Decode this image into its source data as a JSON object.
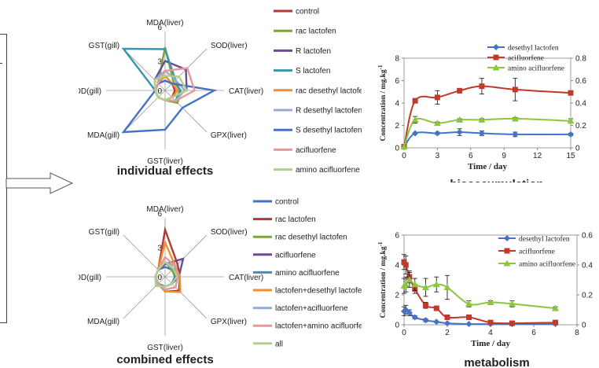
{
  "captions": {
    "individual": "individual effects",
    "combined": "combined effects",
    "bioaccumulation": "bioaccumulation",
    "metabolism": "metabolism"
  },
  "radar_axes": [
    "MDA(liver)",
    "SOD(liver)",
    "CAT(liver)",
    "GPX(liver)",
    "GST(liver)",
    "MDA(gill)",
    "SOD(gill)",
    "GST(gill)"
  ],
  "chart_data": [
    {
      "type": "radar",
      "id": "individual",
      "title": "individual effects",
      "axes": [
        "MDA(liver)",
        "SOD(liver)",
        "CAT(liver)",
        "GPX(liver)",
        "GST(liver)",
        "MDA(gill)",
        "SOD(gill)",
        "GST(gill)"
      ],
      "rlim": [
        0,
        6
      ],
      "ticks": [
        0,
        3,
        6
      ],
      "series": [
        {
          "name": "control",
          "color": "#b13a36",
          "values": [
            1,
            1,
            1,
            1,
            1,
            1,
            1,
            1
          ]
        },
        {
          "name": "rac lactofen",
          "color": "#7ea43a",
          "values": [
            4.4,
            1.2,
            1.6,
            1.8,
            1.0,
            1.0,
            1.0,
            1.0
          ]
        },
        {
          "name": "R lactofen",
          "color": "#6e4a96",
          "values": [
            3.0,
            3.0,
            2.2,
            1.0,
            1.0,
            1.0,
            1.0,
            1.5
          ]
        },
        {
          "name": "S lactofen",
          "color": "#3a95ad",
          "values": [
            4.2,
            1.5,
            1.5,
            1.5,
            1.0,
            1.0,
            1.0,
            6.0
          ]
        },
        {
          "name": "rac desethyl lactofen",
          "color": "#ef8f2f",
          "values": [
            1.5,
            1.0,
            1.3,
            1.0,
            1.0,
            1.0,
            1.0,
            1.0
          ]
        },
        {
          "name": "R desethyl lactofen",
          "color": "#93acd6",
          "values": [
            2.0,
            1.5,
            2.0,
            1.5,
            1.0,
            1.0,
            1.0,
            1.5
          ]
        },
        {
          "name": "S desethyl lactofen",
          "color": "#4472c4",
          "values": [
            1.0,
            1.0,
            5.0,
            2.5,
            4.0,
            6.0,
            1.0,
            1.0
          ]
        },
        {
          "name": "acifluorfene",
          "color": "#e5999b",
          "values": [
            2.0,
            3.2,
            3.0,
            1.5,
            1.0,
            1.0,
            1.0,
            1.0
          ]
        },
        {
          "name": "amino acifluorfene",
          "color": "#b1cf8e",
          "values": [
            1.5,
            2.0,
            2.2,
            1.0,
            1.0,
            1.0,
            1.0,
            1.5
          ]
        }
      ]
    },
    {
      "type": "radar",
      "id": "combined",
      "title": "combined effects",
      "axes": [
        "MDA(liver)",
        "SOD(liver)",
        "CAT(liver)",
        "GPX(liver)",
        "GST(liver)",
        "MDA(gill)",
        "SOD(gill)",
        "GST(gill)"
      ],
      "rlim": [
        0,
        6
      ],
      "ticks": [
        0,
        3,
        6
      ],
      "series": [
        {
          "name": "control",
          "color": "#4472c4",
          "values": [
            1,
            1,
            1,
            1,
            1,
            1,
            1,
            1
          ]
        },
        {
          "name": "rac lactofen",
          "color": "#b13a36",
          "values": [
            4.8,
            1.8,
            1.5,
            2.0,
            1.5,
            1.0,
            1.0,
            1.0
          ]
        },
        {
          "name": "rac desethyl lactofen",
          "color": "#7ea43a",
          "values": [
            1.5,
            1.0,
            1.0,
            1.0,
            1.0,
            1.3,
            1.0,
            1.0
          ]
        },
        {
          "name": "acifluorfene",
          "color": "#6e4a96",
          "values": [
            1.3,
            2.6,
            1.4,
            1.0,
            1.0,
            1.0,
            1.0,
            1.0
          ]
        },
        {
          "name": "amino acifluorfene",
          "color": "#3a95ad",
          "values": [
            1.5,
            1.5,
            1.0,
            1.0,
            1.0,
            1.0,
            1.0,
            1.0
          ]
        },
        {
          "name": "lactofen+desethyl lactofen",
          "color": "#ef8f2f",
          "values": [
            3.5,
            1.5,
            1.5,
            2.2,
            1.5,
            1.0,
            1.0,
            1.0
          ]
        },
        {
          "name": "lactofen+acifluorfene",
          "color": "#93acd6",
          "values": [
            1.5,
            1.5,
            1.3,
            1.5,
            1.3,
            1.0,
            1.0,
            1.0
          ]
        },
        {
          "name": "lactofen+amino acifluorfene",
          "color": "#e5999b",
          "values": [
            2.0,
            1.5,
            1.3,
            1.5,
            1.3,
            1.0,
            1.0,
            1.0
          ]
        },
        {
          "name": "all",
          "color": "#b1cf8e",
          "values": [
            1.5,
            1.2,
            1.2,
            1.0,
            1.0,
            1.3,
            1.0,
            1.0
          ]
        }
      ]
    },
    {
      "type": "line",
      "id": "bioaccumulation",
      "title": "bioaccumulation",
      "xlabel": "Time / day",
      "ylabel": "Concentration / mg.kg",
      "ylabel_sup": "-1",
      "xlim": [
        0,
        15
      ],
      "xticks": [
        0,
        3,
        6,
        9,
        12,
        15
      ],
      "ylim_left": [
        0,
        8
      ],
      "yticks_left": [
        0,
        2,
        4,
        6,
        8
      ],
      "ylim_right": [
        0,
        0.8
      ],
      "yticks_right": [
        "0",
        "0.2",
        "0.4",
        "0.6",
        "0.8"
      ],
      "series": [
        {
          "name": "desethyl lactofen",
          "color": "#4472c4",
          "marker": "diamond",
          "axis": "right",
          "x": [
            0,
            1,
            3,
            5,
            7,
            10,
            15
          ],
          "y": [
            0.01,
            0.13,
            0.13,
            0.14,
            0.13,
            0.12,
            0.12
          ],
          "err": [
            0,
            0,
            0.01,
            0.03,
            0.02,
            0.02,
            0.01
          ]
        },
        {
          "name": "acifluorfene",
          "color": "#c0392b",
          "marker": "square",
          "axis": "left",
          "x": [
            0,
            1,
            3,
            5,
            7,
            10,
            15
          ],
          "y": [
            0.1,
            4.2,
            4.5,
            5.1,
            5.5,
            5.2,
            4.9
          ],
          "err": [
            0,
            0.2,
            0.6,
            0.2,
            0.7,
            1.0,
            0.1
          ]
        },
        {
          "name": "amino acifluorfene",
          "color": "#8cc63f",
          "marker": "triangle",
          "axis": "right",
          "x": [
            0,
            1,
            3,
            5,
            7,
            10,
            15
          ],
          "y": [
            0.01,
            0.25,
            0.22,
            0.25,
            0.25,
            0.26,
            0.24
          ],
          "err": [
            0,
            0.03,
            0.01,
            0.01,
            0.01,
            0.01,
            0.02
          ]
        }
      ]
    },
    {
      "type": "line",
      "id": "metabolism",
      "title": "metabolism",
      "xlabel": "Time / day",
      "ylabel": "Concentration / mg.kg",
      "ylabel_sup": "-1",
      "xlim": [
        0,
        8
      ],
      "xticks": [
        0,
        2,
        4,
        6,
        8
      ],
      "ylim_left": [
        0,
        6
      ],
      "yticks_left": [
        0,
        2,
        4,
        6
      ],
      "ylim_right": [
        0,
        0.6
      ],
      "yticks_right": [
        "0",
        "0.2",
        "0.4",
        "0.6"
      ],
      "series": [
        {
          "name": "desethyl lactofen",
          "color": "#4472c4",
          "marker": "diamond",
          "axis": "left",
          "x": [
            0,
            0.083,
            0.25,
            0.5,
            1,
            1.5,
            2,
            3,
            4,
            5,
            7
          ],
          "y": [
            0.9,
            1.0,
            0.8,
            0.5,
            0.3,
            0.2,
            0.1,
            0.05,
            0.05,
            0.05,
            0.05
          ],
          "err": [
            0.3,
            0.3,
            0.2,
            0.1,
            0.1,
            0.05,
            0,
            0,
            0,
            0,
            0
          ]
        },
        {
          "name": "acifluorfene",
          "color": "#c0392b",
          "marker": "square",
          "axis": "left",
          "x": [
            0,
            0.083,
            0.25,
            0.5,
            1,
            1.5,
            2,
            3,
            4,
            5,
            7
          ],
          "y": [
            4.2,
            4.0,
            3.2,
            2.4,
            1.3,
            1.1,
            0.5,
            0.5,
            0.15,
            0.1,
            0.15
          ],
          "err": [
            0.5,
            0.6,
            0.4,
            0.3,
            0.2,
            0.1,
            0.1,
            0.1,
            0.05,
            0,
            0
          ]
        },
        {
          "name": "amino acifluorfene",
          "color": "#8cc63f",
          "marker": "triangle",
          "axis": "right",
          "x": [
            0,
            0.083,
            0.25,
            0.5,
            1,
            1.5,
            2,
            3,
            4,
            5,
            7
          ],
          "y": [
            0.26,
            0.27,
            0.3,
            0.27,
            0.25,
            0.27,
            0.25,
            0.14,
            0.15,
            0.14,
            0.11
          ],
          "err": [
            0.05,
            0.05,
            0.05,
            0.04,
            0.06,
            0.05,
            0.08,
            0.02,
            0.01,
            0.02,
            0.01
          ]
        }
      ]
    }
  ]
}
